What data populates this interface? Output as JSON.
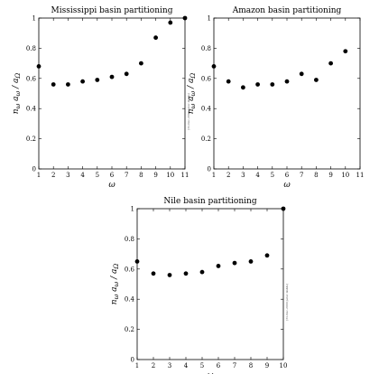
{
  "chart_data": [
    {
      "type": "scatter",
      "title": "Mississippi basin partitioning",
      "xlabel": "ω",
      "ylabel": "n_ω a_ω / a_Ω",
      "xlim": [
        1,
        11
      ],
      "ylim": [
        0,
        1
      ],
      "xticks": [
        1,
        2,
        3,
        4,
        5,
        6,
        7,
        8,
        9,
        10,
        11
      ],
      "yticks": [
        0,
        0.2,
        0.4,
        0.6,
        0.8,
        1
      ],
      "grid": false,
      "x": [
        1,
        2,
        3,
        4,
        5,
        6,
        7,
        8,
        9,
        10,
        11
      ],
      "y": [
        0.68,
        0.56,
        0.56,
        0.58,
        0.59,
        0.61,
        0.63,
        0.7,
        0.87,
        0.97,
        1.0
      ],
      "annotation": "[31-Dec-2000 peter dodds]"
    },
    {
      "type": "scatter",
      "title": "Amazon basin partitioning",
      "xlabel": "ω",
      "ylabel": "n_ω a_ω / a_Ω",
      "xlim": [
        1,
        11
      ],
      "ylim": [
        0,
        1
      ],
      "xticks": [
        1,
        2,
        3,
        4,
        5,
        6,
        7,
        8,
        9,
        10,
        11
      ],
      "yticks": [
        0,
        0.2,
        0.4,
        0.6,
        0.8,
        1
      ],
      "grid": false,
      "x": [
        1,
        2,
        3,
        4,
        5,
        6,
        7,
        8,
        9,
        10
      ],
      "y": [
        0.68,
        0.58,
        0.54,
        0.56,
        0.56,
        0.58,
        0.63,
        0.59,
        0.7,
        0.78
      ],
      "annotation": ""
    },
    {
      "type": "scatter",
      "title": "Nile basin partitioning",
      "xlabel": "ω",
      "ylabel": "n_ω a_ω / a_Ω",
      "xlim": [
        1,
        10
      ],
      "ylim": [
        0,
        1
      ],
      "xticks": [
        1,
        2,
        3,
        4,
        5,
        6,
        7,
        8,
        9,
        10
      ],
      "yticks": [
        0,
        0.2,
        0.4,
        0.6,
        0.8,
        1
      ],
      "grid": false,
      "x": [
        1,
        2,
        3,
        4,
        5,
        6,
        7,
        8,
        9,
        10
      ],
      "y": [
        0.65,
        0.57,
        0.56,
        0.57,
        0.58,
        0.62,
        0.64,
        0.65,
        0.69,
        1.0
      ],
      "annotation": "[31-Dec-2000 peter dodds]"
    }
  ]
}
